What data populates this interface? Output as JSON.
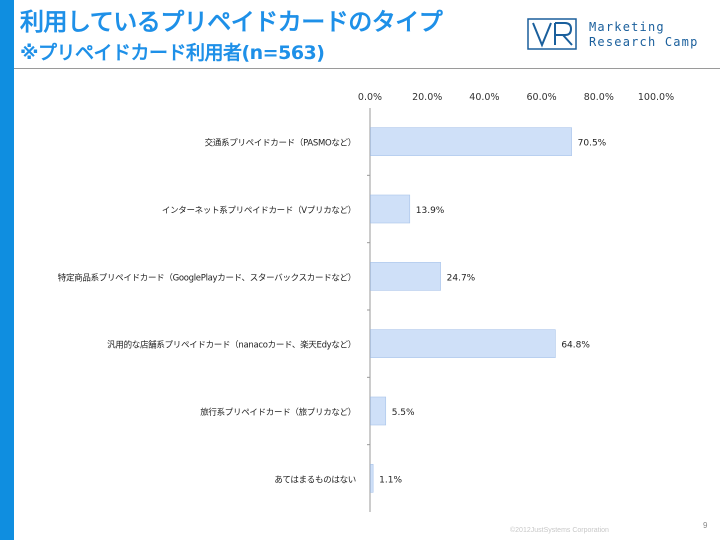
{
  "header": {
    "title": "利用しているプリペイドカードのタイプ",
    "subtitle": "※プリペイドカード利用者(n=563)"
  },
  "logo": {
    "line1": "Marketing",
    "line2": "Research Camp"
  },
  "chart_data": {
    "type": "bar",
    "orientation": "horizontal",
    "categories": [
      "交通系プリペイドカード（PASMOなど）",
      "インターネット系プリペイドカード（Vプリカなど）",
      "特定商品系プリペイドカード（GooglePlayカード、スターバックスカードなど）",
      "汎用的な店舗系プリペイドカード（nanacoカード、楽天Edyなど）",
      "旅行系プリペイドカード（旅プリカなど）",
      "あてはまるものはない"
    ],
    "values": [
      70.5,
      13.9,
      24.7,
      64.8,
      5.5,
      1.1
    ],
    "data_labels": [
      "70.5%",
      "13.9%",
      "24.7%",
      "64.8%",
      "5.5%",
      "1.1%"
    ],
    "xlim": [
      0,
      100
    ],
    "ticks": [
      0,
      20,
      40,
      60,
      80,
      100
    ],
    "tick_labels": [
      "0.0%",
      "20.0%",
      "40.0%",
      "60.0%",
      "80.0%",
      "100.0%"
    ],
    "axis_position": "top",
    "grid": false,
    "bar_color": "#cfe0f8",
    "bar_border_color": "#a9c4ea"
  },
  "footer": {
    "copyright": "©2012JustSystems Corporation",
    "page_number": "9"
  }
}
